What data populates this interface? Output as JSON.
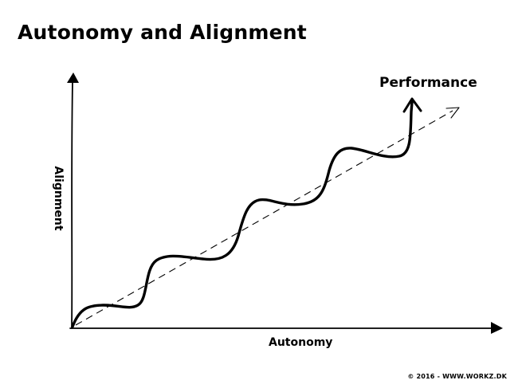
{
  "title": "Autonomy and Alignment",
  "labels": {
    "performance": "Performance",
    "x_axis": "Autonomy",
    "y_axis": "Alignment"
  },
  "footer": {
    "copyright": "© 2016 - WWW.WORKZ.DK"
  },
  "colors": {
    "ink": "#000000",
    "background": "#ffffff"
  }
}
